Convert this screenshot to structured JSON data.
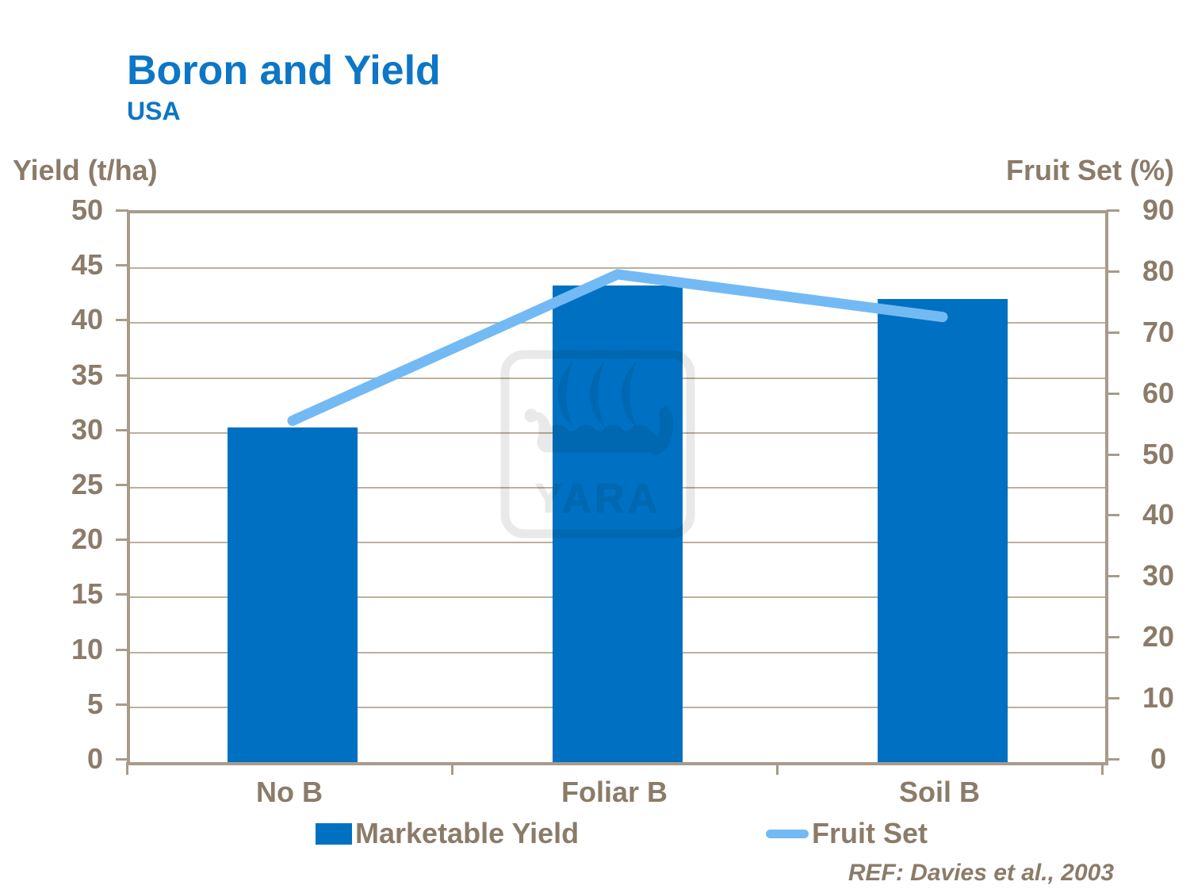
{
  "title": "Boron and Yield",
  "subtitle": "USA",
  "left_axis_title": "Yield (t/ha)",
  "right_axis_title": "Fruit Set (%)",
  "ref_text": "REF: Davies et al., 2003",
  "watermark_text": "YARA",
  "colors": {
    "title_blue": "#0d76c6",
    "bar_blue": "#0071c2",
    "line_blue": "#73baf4",
    "text_brown": "#8b7b69",
    "grid_tan": "#bcb09f",
    "border_tan": "#a89b8a",
    "watermark_gray": "#e9e9e9"
  },
  "legend": [
    {
      "label": "Marketable Yield",
      "type": "bar"
    },
    {
      "label": "Fruit Set",
      "type": "line"
    }
  ],
  "chart_data": {
    "type": "bar",
    "subtype": "bar+line dual-axis",
    "categories": [
      "No B",
      "Foliar B",
      "Soil B"
    ],
    "series": [
      {
        "name": "Marketable Yield",
        "type": "bar",
        "axis": "left",
        "values": [
          30.5,
          43.4,
          42.2
        ]
      },
      {
        "name": "Fruit Set",
        "type": "line",
        "axis": "right",
        "values": [
          56,
          80,
          73
        ]
      }
    ],
    "left_axis": {
      "label": "Yield (t/ha)",
      "min": 0,
      "max": 50,
      "step": 5,
      "ticks": [
        0,
        5,
        10,
        15,
        20,
        25,
        30,
        35,
        40,
        45,
        50
      ]
    },
    "right_axis": {
      "label": "Fruit Set (%)",
      "min": 0,
      "max": 90,
      "step": 10,
      "ticks": [
        0,
        10,
        20,
        30,
        40,
        50,
        60,
        70,
        80,
        90
      ]
    },
    "grid": true,
    "legend_position": "bottom",
    "annotations": [
      "REF: Davies et al., 2003"
    ]
  }
}
